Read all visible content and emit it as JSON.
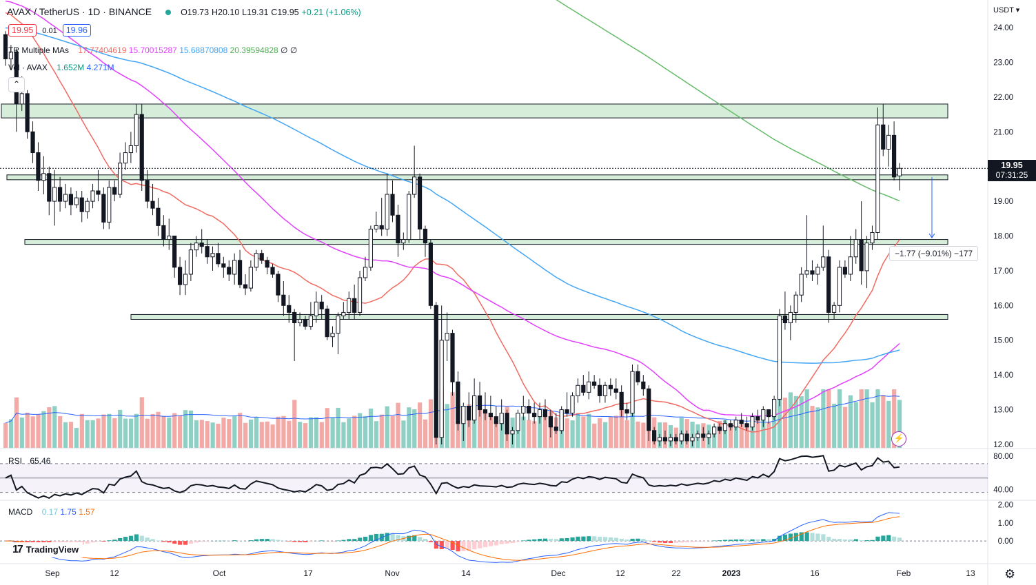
{
  "header": {
    "symbol": "AVAX / TetherUS · 1D · BINANCE",
    "ohlc_open": "O19.73",
    "ohlc_high": "H20.10",
    "ohlc_low": "L19.31",
    "ohlc_close": "C19.95",
    "change": "+0.21 (+1.06%)",
    "sell_price": "19.95",
    "spread": "0.01",
    "buy_price": "19.96"
  },
  "indicators": {
    "ma_label": "TR Multiple MAs",
    "ma_values": [
      {
        "value": "17.77404619",
        "color": "#f06a61"
      },
      {
        "value": "15.70015287",
        "color": "#e040fb"
      },
      {
        "value": "15.68870808",
        "color": "#42a5f5"
      },
      {
        "value": "20.39594828",
        "color": "#66bb6a"
      },
      {
        "value": "∅",
        "color": "#131722"
      },
      {
        "value": "∅",
        "color": "#131722"
      }
    ],
    "vol_label": "Vol · AVAX",
    "vol_values": [
      "1.652M",
      "4.271M"
    ],
    "vol_color": "#2962ff",
    "rsi_label": "RSI",
    "rsi_value": "65.46",
    "macd_label": "MACD",
    "macd_values": [
      {
        "value": "0.17",
        "color": "#79c6d6"
      },
      {
        "value": "1.75",
        "color": "#2962ff"
      },
      {
        "value": "1.57",
        "color": "#ff6d00"
      }
    ]
  },
  "price_label": {
    "price": "19.95",
    "countdown": "07:31:25"
  },
  "measure_label": "−1.77 (−9.01%) −177",
  "branding": "TradingView",
  "axis": {
    "currency": "USDT",
    "price_ticks": [
      "24.00",
      "23.00",
      "22.00",
      "21.00",
      "20.00",
      "19.00",
      "18.00",
      "17.00",
      "16.00",
      "15.00",
      "14.00",
      "13.00",
      "12.00"
    ],
    "rsi_ticks": [
      "80.00",
      "40.00"
    ],
    "macd_ticks": [
      "2.00",
      "1.00",
      "0.00"
    ],
    "time_ticks": [
      "Sep",
      "12",
      "Oct",
      "17",
      "Nov",
      "14",
      "Dec",
      "12",
      "22",
      "2023",
      "16",
      "Feb",
      "13"
    ]
  },
  "colors": {
    "up": "#131722",
    "down": "#131722",
    "vol_up": "#8fd0c4",
    "vol_down": "#f3a9a6",
    "zone_fill": "#cfead4",
    "zone_stroke": "#131722",
    "ma20": "#f06a61",
    "ma50": "#e040fb",
    "ma100": "#42a5f5",
    "ma200": "#66bb6a",
    "macd_line": "#2962ff",
    "signal_line": "#ff6d00"
  },
  "chart_data": {
    "type": "candlestick",
    "ylim": [
      11.9,
      24.2
    ],
    "zones": [
      [
        21.4,
        21.8
      ],
      [
        19.62,
        19.76
      ],
      [
        17.76,
        17.9
      ],
      [
        15.6,
        15.74
      ]
    ],
    "current_price": 19.95,
    "candles": [
      [
        23.8,
        23.9,
        22.9,
        23.1
      ],
      [
        23.1,
        23.5,
        22.8,
        23.3
      ],
      [
        23.3,
        23.4,
        21.0,
        21.8
      ],
      [
        21.8,
        22.6,
        21.6,
        22.1
      ],
      [
        22.1,
        22.2,
        20.8,
        21.0
      ],
      [
        21.0,
        21.3,
        20.1,
        20.4
      ],
      [
        20.4,
        20.7,
        19.3,
        19.6
      ],
      [
        19.6,
        20.3,
        19.2,
        19.8
      ],
      [
        19.8,
        20.0,
        18.6,
        19.0
      ],
      [
        19.0,
        19.9,
        18.3,
        19.4
      ],
      [
        19.4,
        19.7,
        18.7,
        19.0
      ],
      [
        19.0,
        19.5,
        18.8,
        19.2
      ],
      [
        19.2,
        19.4,
        18.6,
        18.9
      ],
      [
        18.9,
        19.3,
        18.8,
        19.1
      ],
      [
        19.1,
        19.3,
        18.4,
        18.7
      ],
      [
        18.7,
        19.1,
        18.5,
        19.0
      ],
      [
        19.0,
        19.5,
        18.8,
        19.3
      ],
      [
        19.3,
        19.9,
        19.0,
        19.2
      ],
      [
        19.2,
        19.4,
        18.2,
        18.4
      ],
      [
        18.4,
        19.6,
        18.2,
        19.4
      ],
      [
        19.4,
        19.6,
        19.0,
        19.2
      ],
      [
        19.2,
        20.4,
        19.1,
        20.1
      ],
      [
        20.1,
        20.7,
        19.9,
        20.4
      ],
      [
        20.4,
        21.0,
        20.1,
        20.6
      ],
      [
        20.6,
        21.8,
        20.4,
        21.5
      ],
      [
        21.5,
        21.8,
        19.3,
        19.6
      ],
      [
        19.6,
        19.9,
        18.8,
        19.0
      ],
      [
        19.0,
        19.5,
        18.6,
        18.8
      ],
      [
        18.8,
        19.1,
        18.0,
        18.3
      ],
      [
        18.3,
        18.6,
        17.7,
        17.9
      ],
      [
        17.9,
        18.5,
        17.6,
        18.0
      ],
      [
        18.0,
        18.0,
        16.8,
        17.1
      ],
      [
        17.1,
        17.4,
        16.3,
        16.6
      ],
      [
        16.6,
        17.3,
        16.3,
        16.9
      ],
      [
        16.9,
        17.8,
        16.7,
        17.6
      ],
      [
        17.6,
        18.0,
        17.4,
        17.8
      ],
      [
        17.8,
        18.2,
        17.5,
        17.7
      ],
      [
        17.7,
        17.9,
        17.2,
        17.4
      ],
      [
        17.4,
        17.7,
        17.0,
        17.5
      ],
      [
        17.5,
        17.8,
        17.1,
        17.2
      ],
      [
        17.2,
        17.4,
        16.8,
        17.1
      ],
      [
        17.1,
        17.3,
        16.7,
        16.9
      ],
      [
        16.9,
        17.5,
        16.6,
        17.3
      ],
      [
        17.3,
        17.6,
        16.5,
        16.6
      ],
      [
        16.6,
        16.9,
        16.3,
        16.5
      ],
      [
        16.5,
        17.3,
        16.4,
        17.1
      ],
      [
        17.1,
        17.6,
        17.0,
        17.5
      ],
      [
        17.5,
        17.6,
        17.2,
        17.3
      ],
      [
        17.3,
        17.4,
        16.9,
        17.1
      ],
      [
        17.1,
        17.2,
        16.8,
        16.9
      ],
      [
        16.9,
        17.0,
        16.1,
        16.3
      ],
      [
        16.3,
        16.7,
        15.7,
        16.0
      ],
      [
        16.0,
        16.3,
        15.5,
        15.8
      ],
      [
        15.8,
        15.9,
        14.4,
        15.5
      ],
      [
        15.5,
        15.8,
        15.4,
        15.6
      ],
      [
        15.6,
        15.7,
        15.3,
        15.4
      ],
      [
        15.4,
        16.1,
        15.3,
        15.7
      ],
      [
        15.7,
        16.4,
        15.5,
        16.1
      ],
      [
        16.1,
        16.3,
        15.6,
        15.9
      ],
      [
        15.9,
        16.0,
        15.0,
        15.1
      ],
      [
        15.1,
        15.4,
        14.8,
        15.2
      ],
      [
        15.2,
        15.8,
        14.6,
        15.7
      ],
      [
        15.7,
        16.1,
        15.6,
        15.8
      ],
      [
        15.8,
        16.4,
        15.6,
        16.2
      ],
      [
        16.2,
        16.6,
        15.6,
        15.8
      ],
      [
        15.8,
        17.0,
        15.7,
        16.8
      ],
      [
        16.8,
        17.4,
        16.7,
        17.1
      ],
      [
        17.1,
        18.3,
        17.0,
        18.2
      ],
      [
        18.2,
        18.7,
        18.1,
        18.3
      ],
      [
        18.3,
        19.1,
        18.0,
        18.2
      ],
      [
        18.2,
        19.8,
        18.0,
        19.2
      ],
      [
        19.2,
        19.6,
        18.4,
        18.6
      ],
      [
        18.6,
        18.9,
        17.4,
        17.8
      ],
      [
        17.8,
        18.1,
        17.6,
        17.9
      ],
      [
        17.9,
        19.3,
        17.8,
        19.2
      ],
      [
        19.2,
        20.6,
        19.1,
        19.7
      ],
      [
        19.7,
        19.8,
        17.9,
        18.2
      ],
      [
        18.2,
        18.3,
        17.4,
        17.8
      ],
      [
        17.8,
        17.9,
        15.9,
        16.0
      ],
      [
        16.0,
        16.1,
        12.0,
        12.2
      ],
      [
        12.2,
        16.0,
        12.0,
        15.0
      ],
      [
        15.0,
        15.8,
        14.4,
        15.2
      ],
      [
        15.2,
        15.3,
        13.4,
        13.8
      ],
      [
        13.8,
        14.1,
        12.4,
        12.6
      ],
      [
        12.6,
        13.2,
        12.1,
        13.1
      ],
      [
        13.1,
        13.5,
        12.5,
        12.7
      ],
      [
        12.7,
        13.9,
        12.6,
        13.4
      ],
      [
        13.4,
        13.8,
        12.8,
        13.0
      ],
      [
        13.0,
        13.5,
        12.7,
        12.9
      ],
      [
        12.9,
        13.4,
        12.7,
        12.8
      ],
      [
        12.8,
        13.1,
        12.5,
        12.6
      ],
      [
        12.6,
        13.3,
        12.4,
        12.9
      ],
      [
        12.9,
        13.0,
        12.1,
        12.3
      ],
      [
        12.3,
        12.5,
        12.0,
        12.4
      ],
      [
        12.4,
        13.0,
        12.3,
        12.9
      ],
      [
        12.9,
        13.4,
        12.7,
        13.1
      ],
      [
        13.1,
        13.3,
        12.7,
        12.9
      ],
      [
        12.9,
        13.2,
        12.6,
        12.8
      ],
      [
        12.8,
        13.2,
        12.6,
        13.0
      ],
      [
        13.0,
        13.3,
        12.7,
        12.8
      ],
      [
        12.8,
        13.0,
        12.2,
        12.5
      ],
      [
        12.5,
        12.9,
        12.3,
        12.4
      ],
      [
        12.4,
        13.1,
        12.3,
        13.0
      ],
      [
        13.0,
        13.5,
        12.8,
        12.9
      ],
      [
        12.9,
        13.5,
        12.8,
        13.4
      ],
      [
        13.4,
        13.9,
        13.2,
        13.7
      ],
      [
        13.7,
        14.0,
        13.4,
        13.5
      ],
      [
        13.5,
        14.1,
        13.3,
        13.8
      ],
      [
        13.8,
        14.0,
        13.6,
        13.7
      ],
      [
        13.7,
        13.9,
        13.2,
        13.4
      ],
      [
        13.4,
        13.8,
        13.2,
        13.7
      ],
      [
        13.7,
        13.9,
        13.4,
        13.6
      ],
      [
        13.6,
        13.9,
        13.3,
        13.5
      ],
      [
        13.5,
        13.7,
        12.8,
        13.0
      ],
      [
        13.0,
        13.2,
        12.7,
        12.9
      ],
      [
        12.9,
        14.3,
        12.8,
        14.1
      ],
      [
        14.1,
        14.3,
        13.7,
        13.8
      ],
      [
        13.8,
        14.0,
        13.4,
        13.6
      ],
      [
        13.6,
        13.7,
        12.1,
        12.4
      ],
      [
        12.4,
        12.5,
        12.0,
        12.1
      ],
      [
        12.1,
        12.3,
        11.95,
        12.2
      ],
      [
        12.2,
        12.4,
        12.0,
        12.1
      ],
      [
        12.1,
        12.3,
        11.95,
        12.2
      ],
      [
        12.2,
        12.3,
        12.0,
        12.1
      ],
      [
        12.1,
        12.4,
        12.0,
        12.3
      ],
      [
        12.3,
        12.4,
        12.0,
        12.1
      ],
      [
        12.1,
        12.3,
        11.95,
        12.2
      ],
      [
        12.2,
        12.4,
        12.1,
        12.3
      ],
      [
        12.3,
        12.5,
        12.1,
        12.2
      ],
      [
        12.2,
        12.4,
        12.0,
        12.3
      ],
      [
        12.3,
        12.6,
        12.2,
        12.5
      ],
      [
        12.5,
        12.6,
        12.3,
        12.4
      ],
      [
        12.4,
        12.7,
        12.3,
        12.6
      ],
      [
        12.6,
        12.7,
        12.4,
        12.5
      ],
      [
        12.5,
        12.8,
        12.4,
        12.7
      ],
      [
        12.7,
        12.9,
        12.5,
        12.6
      ],
      [
        12.6,
        12.8,
        12.4,
        12.5
      ],
      [
        12.5,
        12.9,
        12.4,
        12.8
      ],
      [
        12.8,
        13.0,
        12.6,
        12.7
      ],
      [
        12.7,
        13.1,
        12.5,
        13.0
      ],
      [
        13.0,
        13.0,
        12.6,
        12.8
      ],
      [
        12.8,
        13.4,
        12.7,
        13.3
      ],
      [
        13.3,
        15.9,
        13.1,
        15.7
      ],
      [
        15.7,
        16.4,
        15.3,
        15.5
      ],
      [
        15.5,
        16.0,
        15.0,
        15.8
      ],
      [
        15.8,
        16.4,
        15.5,
        16.3
      ],
      [
        16.3,
        17.1,
        16.1,
        16.9
      ],
      [
        16.9,
        18.6,
        16.8,
        17.0
      ],
      [
        17.0,
        17.3,
        16.7,
        16.9
      ],
      [
        16.9,
        17.2,
        16.6,
        17.1
      ],
      [
        17.1,
        18.3,
        17.0,
        17.4
      ],
      [
        17.4,
        17.6,
        15.5,
        15.8
      ],
      [
        15.8,
        16.1,
        15.6,
        16.0
      ],
      [
        16.0,
        17.3,
        15.8,
        17.1
      ],
      [
        17.1,
        17.3,
        16.8,
        16.9
      ],
      [
        16.9,
        18.0,
        16.7,
        17.4
      ],
      [
        17.4,
        18.2,
        17.2,
        17.9
      ],
      [
        17.9,
        19.0,
        16.6,
        17.0
      ],
      [
        17.0,
        18.0,
        16.5,
        17.8
      ],
      [
        17.8,
        18.3,
        17.6,
        18.1
      ],
      [
        18.1,
        21.7,
        17.9,
        21.2
      ],
      [
        21.2,
        21.8,
        20.3,
        20.5
      ],
      [
        20.5,
        21.2,
        20.0,
        20.9
      ],
      [
        20.9,
        21.3,
        19.6,
        19.7
      ],
      [
        19.73,
        20.1,
        19.31,
        19.95
      ]
    ]
  }
}
